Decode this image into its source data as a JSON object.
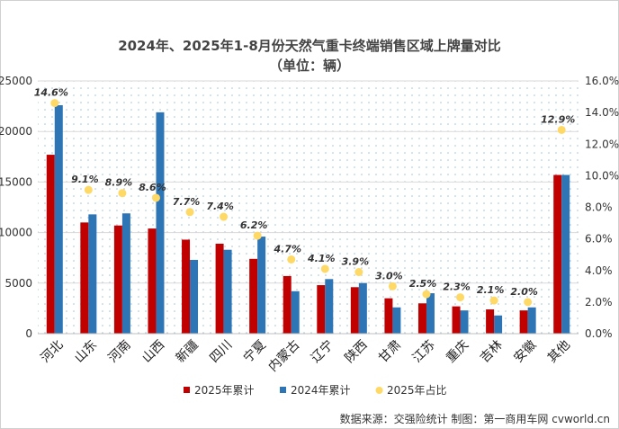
{
  "title_line1": "2024年、2025年1-8月份天然气重卡终端销售区域上牌量对比",
  "title_line2": "（单位：辆）",
  "source": "数据来源：交强险统计  制图：第一商用车网 cvworld.cn",
  "chart_data": {
    "type": "bar",
    "categories": [
      "河北",
      "山东",
      "河南",
      "山西",
      "新疆",
      "四川",
      "宁夏",
      "内蒙古",
      "辽宁",
      "陕西",
      "甘肃",
      "江苏",
      "重庆",
      "吉林",
      "安徽",
      "其他"
    ],
    "series": [
      {
        "name": "2025年累计",
        "color": "#c00000",
        "values": [
          17700,
          11000,
          10700,
          10400,
          9300,
          8900,
          7400,
          5700,
          4800,
          4600,
          3500,
          3000,
          2700,
          2400,
          2300,
          15700
        ]
      },
      {
        "name": "2024年累计",
        "color": "#2e75b6",
        "values": [
          22600,
          11800,
          11900,
          21900,
          7300,
          8300,
          9600,
          4200,
          5400,
          5000,
          2600,
          4000,
          2300,
          1800,
          2600,
          15700
        ]
      },
      {
        "name": "2025年占比",
        "color": "#ffd966",
        "axis": "right",
        "values": [
          14.6,
          9.1,
          8.9,
          8.6,
          7.7,
          7.4,
          6.2,
          4.7,
          4.1,
          3.9,
          3.0,
          2.5,
          2.3,
          2.1,
          2.0,
          12.9
        ]
      }
    ],
    "pct_labels": [
      "14.6%",
      "9.1%",
      "8.9%",
      "8.6%",
      "7.7%",
      "7.4%",
      "6.2%",
      "4.7%",
      "4.1%",
      "3.9%",
      "3.0%",
      "2.5%",
      "2.3%",
      "2.1%",
      "2.0%",
      "12.9%"
    ],
    "y_left": {
      "min": 0,
      "max": 25000,
      "ticks": [
        0,
        5000,
        10000,
        15000,
        20000,
        25000
      ]
    },
    "y_right": {
      "min": 0,
      "max": 16,
      "ticks": [
        "0.0%",
        "2.0%",
        "4.0%",
        "6.0%",
        "8.0%",
        "10.0%",
        "12.0%",
        "14.0%",
        "16.0%"
      ]
    },
    "legend": {
      "position": "bottom"
    }
  }
}
